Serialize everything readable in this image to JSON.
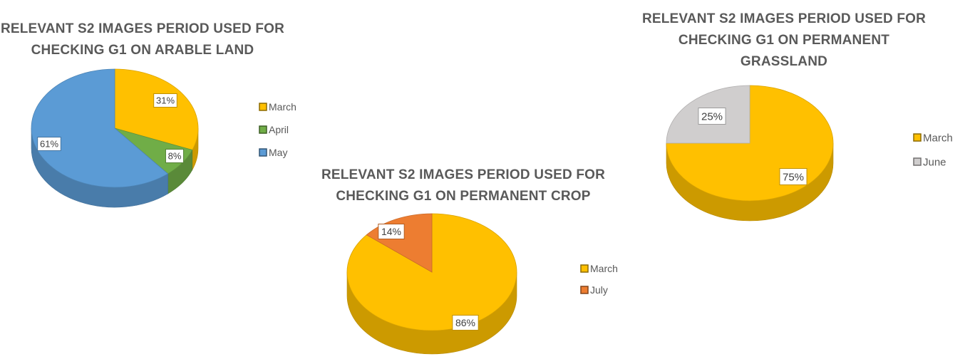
{
  "chart_data": [
    {
      "type": "pie",
      "title_lines": [
        "RELEVANT S2 IMAGES PERIOD USED FOR",
        "CHECKING G1 ON ARABLE LAND"
      ],
      "categories": [
        "March",
        "April",
        "May"
      ],
      "values": [
        31,
        8,
        61
      ],
      "data_labels": [
        "31%",
        "8%",
        "61%"
      ],
      "colors": [
        "#FFC000",
        "#70AD47",
        "#5B9BD5"
      ],
      "legend_position": "right"
    },
    {
      "type": "pie",
      "title_lines": [
        "RELEVANT S2 IMAGES PERIOD USED FOR",
        "CHECKING G1 ON PERMANENT CROP"
      ],
      "categories": [
        "March",
        "July"
      ],
      "values": [
        86,
        14
      ],
      "data_labels": [
        "86%",
        "14%"
      ],
      "colors": [
        "#FFC000",
        "#ED7D31"
      ],
      "legend_position": "right"
    },
    {
      "type": "pie",
      "title_lines": [
        "RELEVANT S2 IMAGES PERIOD USED FOR",
        "CHECKING G1 ON PERMANENT",
        "GRASSLAND"
      ],
      "categories": [
        "March",
        "June"
      ],
      "values": [
        75,
        25
      ],
      "data_labels": [
        "75%",
        "25%"
      ],
      "colors": [
        "#FFC000",
        "#D0CECE"
      ],
      "legend_position": "right"
    }
  ]
}
